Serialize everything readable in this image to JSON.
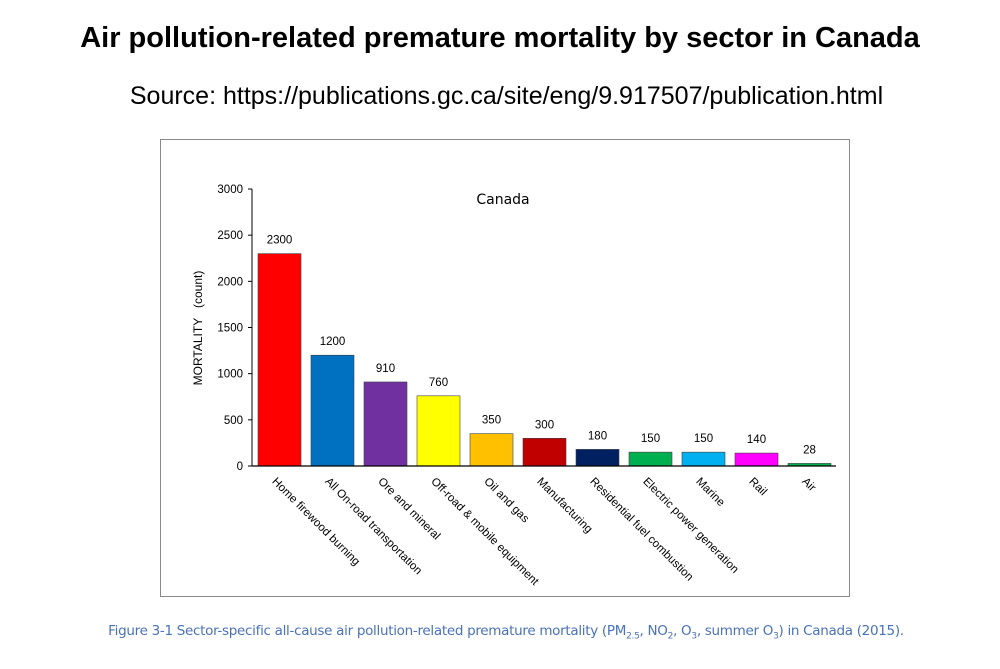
{
  "header": {
    "title": "Air pollution-related premature mortality by sector in Canada",
    "source": "Source: https://publications.gc.ca/site/eng/9.917507/publication.html"
  },
  "caption": {
    "prefix": "Figure 3-1  Sector-specific all-cause air pollution-related premature mortality (PM",
    "pm_sub": "2.5",
    "mid1": ", NO",
    "no2_sub": "2",
    "mid2": ", O",
    "o3_sub": "3",
    "mid3": ", summer O",
    "o3s_sub": "3",
    "suffix": ") in Canada (2015)."
  },
  "chart_data": {
    "type": "bar",
    "title": "Canada",
    "xlabel": "",
    "ylabel": "MORTALITY   (count)",
    "ylim": [
      0,
      3000
    ],
    "yticks": [
      0,
      500,
      1000,
      1500,
      2000,
      2500,
      3000
    ],
    "grid": false,
    "legend": "none",
    "categories": [
      "Home firewood burning",
      "All On-road transportation",
      "Ore and mineral",
      "Off-road & mobile equipment",
      "Oil and gas",
      "Manufacturing",
      "Residential fuel combustion",
      "Electric power generation",
      "Marine",
      "Rail",
      "Air"
    ],
    "values": [
      2300,
      1200,
      910,
      760,
      350,
      300,
      180,
      150,
      150,
      140,
      28
    ],
    "data_labels": [
      "2300",
      "1200",
      "910",
      "760",
      "350",
      "300",
      "180",
      "150",
      "150",
      "140",
      "28"
    ],
    "colors": [
      "#ff0000",
      "#0070c0",
      "#7030a0",
      "#ffff00",
      "#ffc000",
      "#c00000",
      "#002060",
      "#00b050",
      "#00b0f0",
      "#ff00ff",
      "#00b050"
    ]
  }
}
